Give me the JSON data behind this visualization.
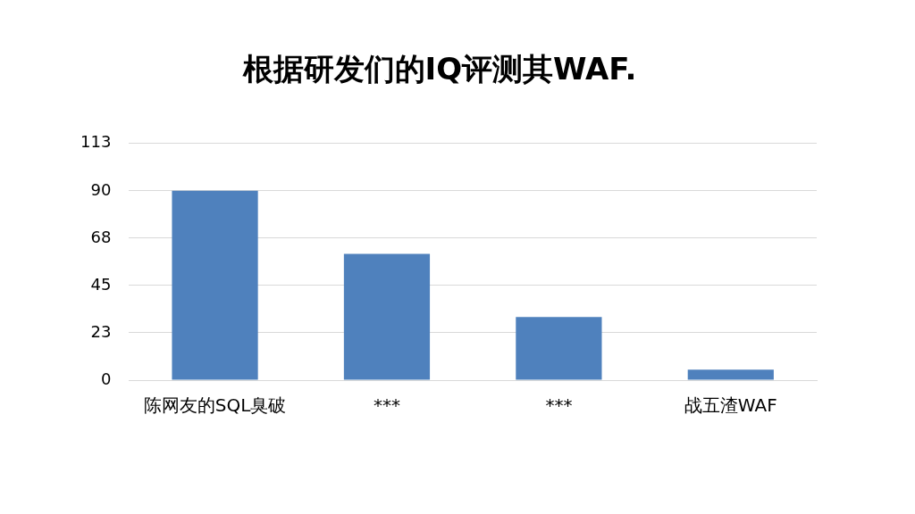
{
  "chart_data": {
    "type": "bar",
    "title": "根据研发们的IQ评测其WAF.",
    "categories": [
      "陈网友的SQL臭破",
      "***",
      "***",
      "战五渣WAF"
    ],
    "values": [
      90,
      60,
      30,
      5
    ],
    "color": "#4f81bd",
    "ylim": [
      0,
      112.5
    ],
    "yticks": [
      0,
      {
        "value": 22.5,
        "label": "23"
      },
      45,
      {
        "value": 67.5,
        "label": "68"
      },
      90,
      {
        "value": 112.5,
        "label": "113"
      }
    ],
    "grid": "y",
    "legend": false
  }
}
